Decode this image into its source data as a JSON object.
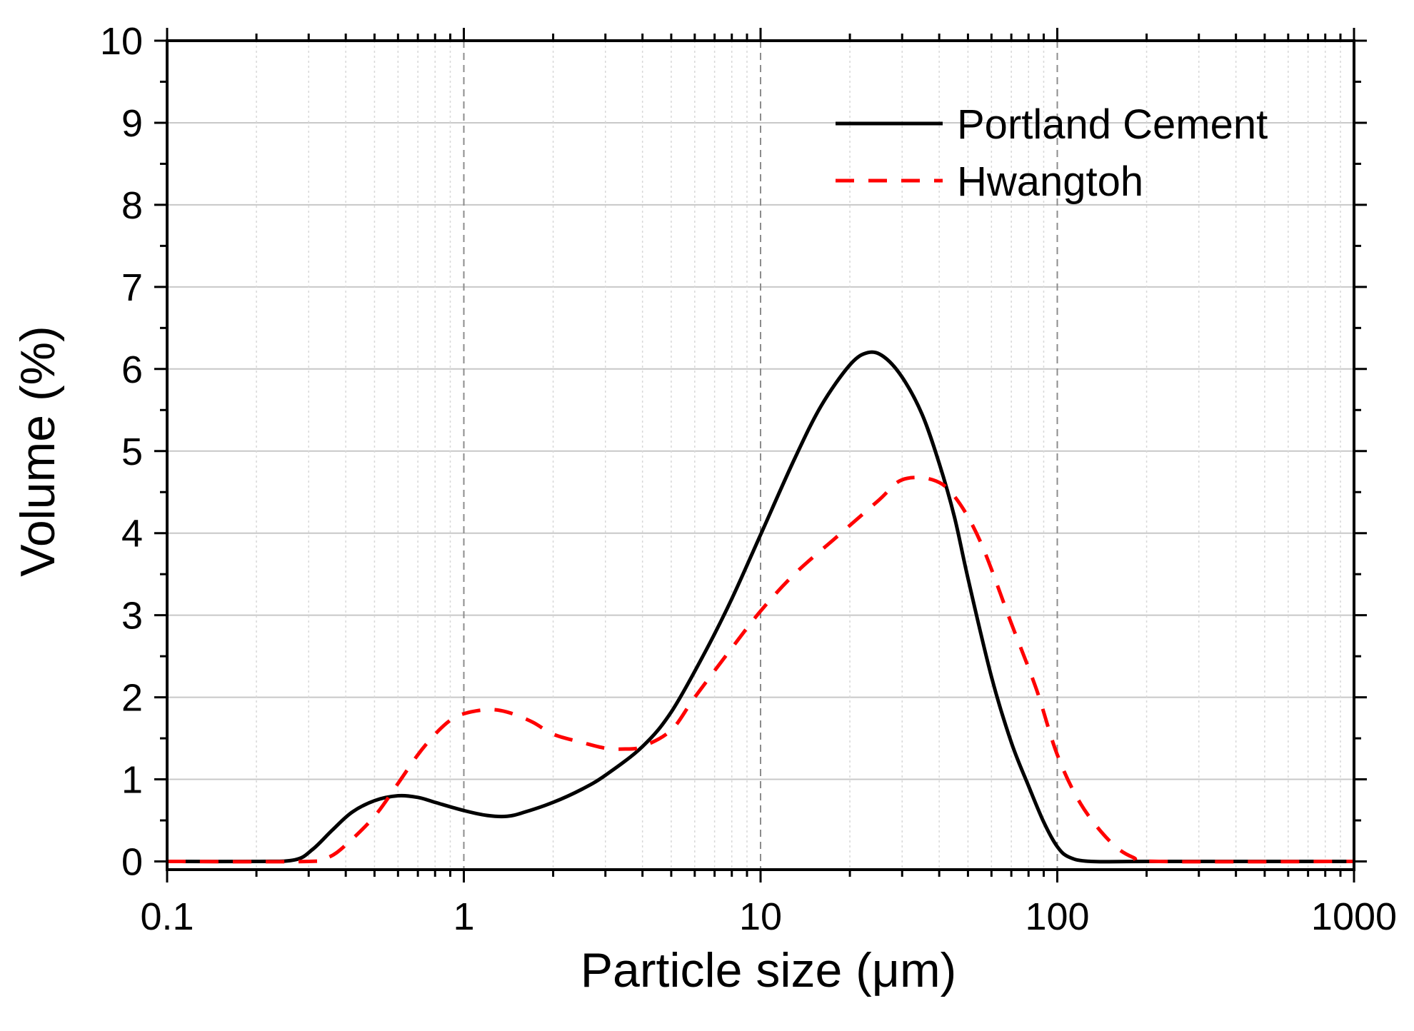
{
  "chart_data": {
    "type": "line",
    "title": "",
    "xlabel": "Particle size (μm)",
    "ylabel": "Volume (%)",
    "xscale": "log",
    "xlim": [
      0.1,
      1000
    ],
    "ylim": [
      0,
      10
    ],
    "xticks": [
      0.1,
      1,
      10,
      100,
      1000
    ],
    "xtick_labels": [
      "0.1",
      "1",
      "10",
      "100",
      "1000"
    ],
    "yticks": [
      0,
      1,
      2,
      3,
      4,
      5,
      6,
      7,
      8,
      9,
      10
    ],
    "ytick_labels": [
      "0",
      "1",
      "2",
      "3",
      "4",
      "5",
      "6",
      "7",
      "8",
      "9",
      "10"
    ],
    "grid": true,
    "legend_position": "top-right",
    "series": [
      {
        "name": "Portland Cement",
        "color": "#000000",
        "style": "solid",
        "x": [
          0.1,
          0.2,
          0.27,
          0.31,
          0.36,
          0.42,
          0.5,
          0.6,
          0.7,
          0.8,
          1.0,
          1.2,
          1.4,
          1.6,
          2.0,
          2.5,
          3.0,
          4.0,
          5.0,
          6.5,
          8.0,
          10.0,
          13.0,
          16.0,
          20.0,
          23.0,
          26.0,
          30.0,
          35.0,
          40.0,
          45.0,
          50.0,
          60.0,
          70.0,
          80.0,
          90.0,
          100.0,
          110.0,
          130.0,
          200.0,
          1000.0
        ],
        "y": [
          0,
          0,
          0.02,
          0.15,
          0.38,
          0.6,
          0.74,
          0.8,
          0.78,
          0.72,
          0.62,
          0.56,
          0.55,
          0.6,
          0.72,
          0.88,
          1.05,
          1.4,
          1.82,
          2.55,
          3.2,
          3.98,
          4.9,
          5.55,
          6.05,
          6.2,
          6.15,
          5.9,
          5.45,
          4.85,
          4.2,
          3.45,
          2.25,
          1.45,
          0.92,
          0.48,
          0.18,
          0.05,
          0,
          0,
          0
        ]
      },
      {
        "name": "Hwangtoh",
        "color": "#ff0000",
        "style": "dashed",
        "x": [
          0.1,
          0.3,
          0.35,
          0.4,
          0.5,
          0.6,
          0.7,
          0.8,
          0.9,
          1.0,
          1.2,
          1.4,
          1.7,
          2.0,
          2.5,
          3.0,
          3.5,
          4.0,
          5.0,
          6.0,
          8.0,
          10.0,
          13.0,
          18.0,
          25.0,
          30.0,
          38.0,
          45.0,
          55.0,
          70.0,
          85.0,
          100.0,
          120.0,
          150.0,
          180.0,
          220.0,
          1000.0
        ],
        "y": [
          0,
          0,
          0.05,
          0.2,
          0.55,
          0.95,
          1.3,
          1.55,
          1.72,
          1.8,
          1.85,
          1.82,
          1.7,
          1.55,
          1.45,
          1.38,
          1.37,
          1.4,
          1.6,
          2.0,
          2.6,
          3.05,
          3.5,
          3.95,
          4.4,
          4.65,
          4.65,
          4.45,
          3.9,
          2.9,
          2.1,
          1.3,
          0.7,
          0.25,
          0.05,
          0,
          0
        ]
      }
    ]
  }
}
